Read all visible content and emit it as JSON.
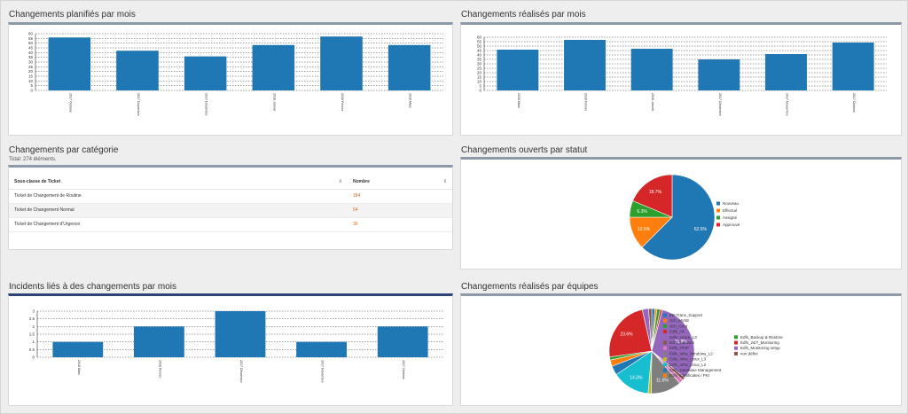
{
  "panels": {
    "planned": {
      "title": "Changements planifiés par mois"
    },
    "done": {
      "title": "Changements réalisés par mois"
    },
    "category": {
      "title": "Changements par catégorie",
      "subtitle": "Total: 274 éléments.",
      "table": {
        "headers": [
          "Sous-classe de Ticket",
          "Nombre"
        ],
        "rows": [
          {
            "label": "Ticket de Changement de Routine",
            "value": "184"
          },
          {
            "label": "Ticket de Changement Normal",
            "value": "54"
          },
          {
            "label": "Ticket de Changement d'Urgence",
            "value": "36"
          }
        ]
      }
    },
    "status": {
      "title": "Changements ouverts par statut"
    },
    "incidents": {
      "title": "Incidents liés à des changements par mois"
    },
    "teams": {
      "title": "Changements réalisés par équipes"
    }
  },
  "chart_data": [
    {
      "type": "bar",
      "panel": "planned",
      "categories": [
        "2017 Octobre",
        "2017 Novembre",
        "2017 Décembre",
        "2018 Janvier",
        "2018 Février",
        "2018 Mars"
      ],
      "values": [
        56,
        42,
        36,
        48,
        57,
        48
      ],
      "ylim": [
        0,
        60
      ],
      "yticks": [
        0,
        5,
        10,
        15,
        20,
        25,
        30,
        35,
        40,
        45,
        50,
        55,
        60
      ],
      "color": "#1f77b4"
    },
    {
      "type": "bar",
      "panel": "done",
      "categories": [
        "2018 Mars",
        "2018 Février",
        "2018 Janvier",
        "2017 Décembre",
        "2017 Novembre",
        "2017 Octobre"
      ],
      "values": [
        46,
        57,
        47,
        35,
        41,
        54
      ],
      "ylim": [
        0,
        60
      ],
      "yticks": [
        0,
        5,
        10,
        15,
        20,
        25,
        30,
        35,
        40,
        45,
        50,
        55,
        60
      ],
      "color": "#1f77b4"
    },
    {
      "type": "pie",
      "panel": "status",
      "slices": [
        {
          "name": "Nouveau",
          "value": 62.5,
          "label": "62.5%",
          "color": "#1f77b4"
        },
        {
          "name": "Effectué",
          "value": 12.5,
          "label": "12.5%",
          "color": "#ff7f0e"
        },
        {
          "name": "Assigné",
          "value": 6.3,
          "label": "6.3%",
          "color": "#2ca02c"
        },
        {
          "name": "Approuvé",
          "value": 18.7,
          "label": "18.7%",
          "color": "#d62728"
        }
      ]
    },
    {
      "type": "bar",
      "panel": "incidents",
      "categories": [
        "2018 Mars",
        "2018 Février",
        "2017 Décembre",
        "2017 Novembre",
        "2017 Octobre"
      ],
      "values": [
        1,
        2,
        3,
        1,
        2
      ],
      "ylim": [
        0,
        3
      ],
      "yticks": [
        "0",
        "0.5",
        "1",
        "1.5",
        "2",
        "2.5",
        "3"
      ],
      "color": "#1f77b4"
    },
    {
      "type": "pie",
      "panel": "teams",
      "slices": [
        {
          "name": "EB-Trans_Support",
          "value": 1.2,
          "label": "",
          "color": "#1f77b4"
        },
        {
          "name": "Sch_MySE",
          "value": 0.8,
          "label": "",
          "color": "#ff7f0e"
        },
        {
          "name": "Sch_CKM",
          "value": 1.2,
          "label": "",
          "color": "#2ca02c"
        },
        {
          "name": "Edfs_All",
          "value": 0.8,
          "label": "",
          "color": "#d62728"
        },
        {
          "name": "Edfs_Azure_L3",
          "value": 31.8,
          "label": "31.8%",
          "color": "#9467bd"
        },
        {
          "name": "Edfs_Network",
          "value": 1.2,
          "label": "",
          "color": "#8c564b"
        },
        {
          "name": "Edfs_ITOP",
          "value": 1.6,
          "label": "",
          "color": "#e377c2"
        },
        {
          "name": "Edfs_Infra_Windows_L2",
          "value": 11.6,
          "label": "11.6%",
          "color": "#7f7f7f"
        },
        {
          "name": "Edfs_Infra_Linux_L3",
          "value": 1.2,
          "label": "",
          "color": "#bcbd22"
        },
        {
          "name": "Edfs_Infra_Linux_L2",
          "value": 14.3,
          "label": "14.3%",
          "color": "#17becf"
        },
        {
          "name": "Edfs_Database Management",
          "value": 3.5,
          "label": "",
          "color": "#1f77b4"
        },
        {
          "name": "Edfs_Certificates / PKI",
          "value": 2.4,
          "label": "",
          "color": "#ff7f0e"
        },
        {
          "name": "Edfs_Backup & Restore",
          "value": 1.2,
          "label": "",
          "color": "#2ca02c"
        },
        {
          "name": "Edfs_24/7_Monitoring",
          "value": 23.6,
          "label": "23.6%",
          "color": "#d62728"
        },
        {
          "name": "Edfs_Monitoring setup",
          "value": 2.4,
          "label": "",
          "color": "#9467bd"
        },
        {
          "name": "non défini",
          "value": 1.2,
          "label": "",
          "color": "#8c564b"
        }
      ]
    }
  ]
}
